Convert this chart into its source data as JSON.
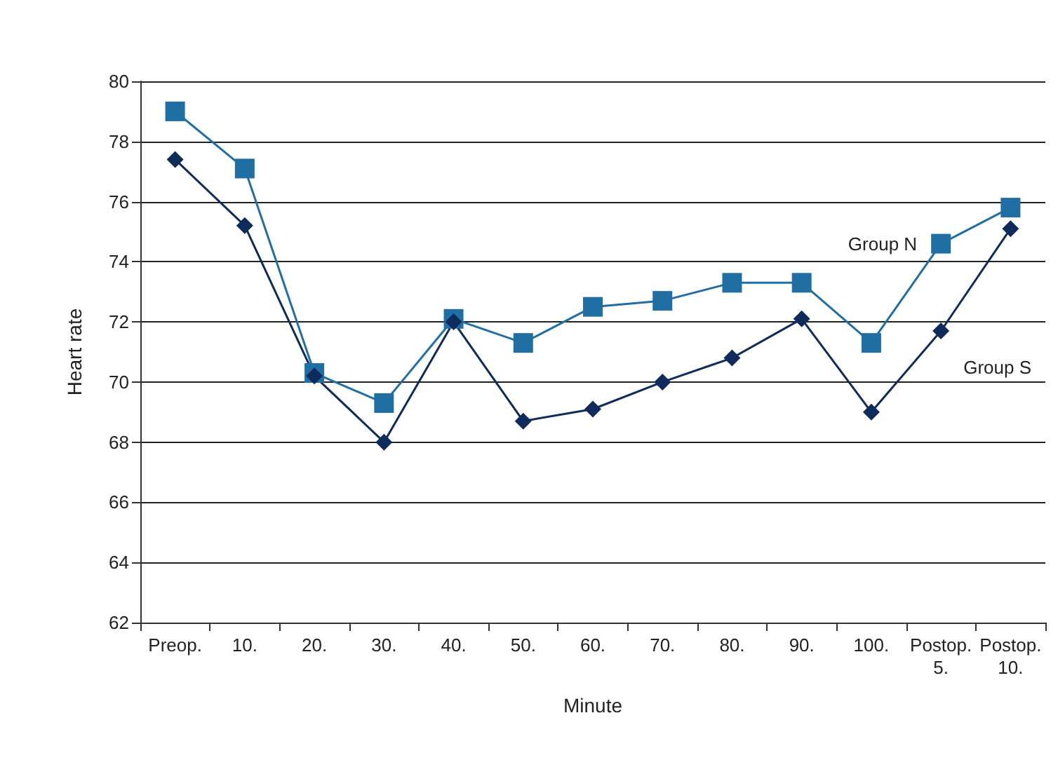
{
  "chart_data": {
    "type": "line",
    "xlabel": "Minute",
    "ylabel": "Heart rate",
    "categories": [
      "Preop.",
      "10.",
      "20.",
      "30.",
      "40.",
      "50.",
      "60.",
      "70.",
      "80.",
      "90.",
      "100.",
      "Postop. 5.",
      "Postop. 10."
    ],
    "series": [
      {
        "name": "Group N",
        "color": "#1f6fa5",
        "marker": "square",
        "values": [
          79.0,
          77.1,
          70.3,
          69.3,
          72.1,
          71.3,
          72.5,
          72.7,
          73.3,
          73.3,
          71.3,
          74.6,
          75.8
        ]
      },
      {
        "name": "Group S",
        "color": "#0f2b5b",
        "marker": "diamond",
        "values": [
          77.4,
          75.2,
          70.2,
          68.0,
          72.0,
          68.7,
          69.1,
          70.0,
          70.8,
          72.1,
          69.0,
          71.7,
          75.1
        ]
      }
    ],
    "ylim": [
      62,
      80
    ],
    "yticks": [
      62,
      64,
      66,
      68,
      70,
      72,
      74,
      76,
      78,
      80
    ],
    "grid": "y",
    "legend": false,
    "line_style": "solid"
  }
}
